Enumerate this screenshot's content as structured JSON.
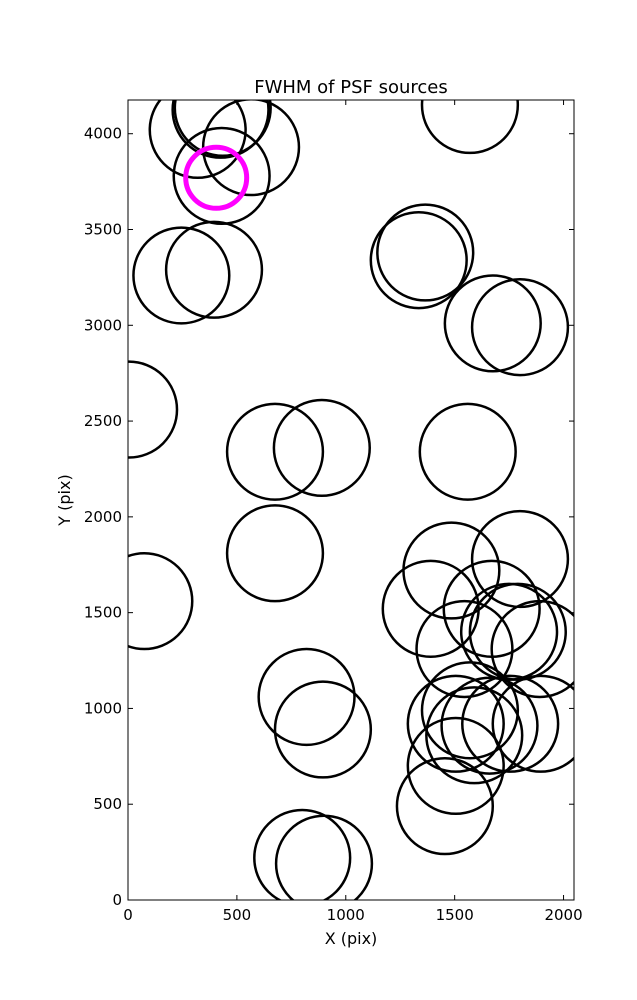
{
  "chart_data": {
    "type": "scatter",
    "title": "FWHM of PSF sources",
    "xlabel": "X (pix)",
    "ylabel": "Y (pix)",
    "xlim": [
      0,
      2048
    ],
    "ylim": [
      0,
      4176
    ],
    "xticks": [
      0,
      500,
      1000,
      1500,
      2000
    ],
    "yticks": [
      0,
      500,
      1000,
      1500,
      2000,
      2500,
      3000,
      3500,
      4000
    ],
    "grid": false,
    "marker": "circle",
    "highlight_color": "#ff00ff",
    "default_color": "#000000",
    "sources": [
      {
        "x": 320,
        "y": 4020,
        "r": 220,
        "highlight": false
      },
      {
        "x": 425,
        "y": 4125,
        "r": 220,
        "highlight": false
      },
      {
        "x": 435,
        "y": 4135,
        "r": 220,
        "highlight": false
      },
      {
        "x": 565,
        "y": 3930,
        "r": 220,
        "highlight": false
      },
      {
        "x": 430,
        "y": 3780,
        "r": 220,
        "highlight": false
      },
      {
        "x": 405,
        "y": 3770,
        "r": 140,
        "highlight": true
      },
      {
        "x": 1570,
        "y": 4150,
        "r": 220,
        "highlight": false
      },
      {
        "x": 1335,
        "y": 3340,
        "r": 220,
        "highlight": false
      },
      {
        "x": 1365,
        "y": 3380,
        "r": 220,
        "highlight": false
      },
      {
        "x": 245,
        "y": 3260,
        "r": 220,
        "highlight": false
      },
      {
        "x": 395,
        "y": 3290,
        "r": 220,
        "highlight": false
      },
      {
        "x": 1675,
        "y": 3010,
        "r": 220,
        "highlight": false
      },
      {
        "x": 1800,
        "y": 2990,
        "r": 220,
        "highlight": false
      },
      {
        "x": 5,
        "y": 2560,
        "r": 220,
        "highlight": false
      },
      {
        "x": 675,
        "y": 2340,
        "r": 220,
        "highlight": false
      },
      {
        "x": 890,
        "y": 2360,
        "r": 220,
        "highlight": false
      },
      {
        "x": 1560,
        "y": 2340,
        "r": 220,
        "highlight": false
      },
      {
        "x": 675,
        "y": 1810,
        "r": 220,
        "highlight": false
      },
      {
        "x": 75,
        "y": 1560,
        "r": 220,
        "highlight": false
      },
      {
        "x": 1485,
        "y": 1720,
        "r": 220,
        "highlight": false
      },
      {
        "x": 1800,
        "y": 1780,
        "r": 220,
        "highlight": false
      },
      {
        "x": 1390,
        "y": 1520,
        "r": 220,
        "highlight": false
      },
      {
        "x": 1670,
        "y": 1520,
        "r": 220,
        "highlight": false
      },
      {
        "x": 1750,
        "y": 1400,
        "r": 220,
        "highlight": false
      },
      {
        "x": 1790,
        "y": 1400,
        "r": 220,
        "highlight": false
      },
      {
        "x": 1890,
        "y": 1310,
        "r": 220,
        "highlight": false
      },
      {
        "x": 1545,
        "y": 1310,
        "r": 220,
        "highlight": false
      },
      {
        "x": 820,
        "y": 1060,
        "r": 220,
        "highlight": false
      },
      {
        "x": 895,
        "y": 890,
        "r": 220,
        "highlight": false
      },
      {
        "x": 1570,
        "y": 990,
        "r": 220,
        "highlight": false
      },
      {
        "x": 1505,
        "y": 920,
        "r": 220,
        "highlight": false
      },
      {
        "x": 1660,
        "y": 910,
        "r": 220,
        "highlight": false
      },
      {
        "x": 1590,
        "y": 860,
        "r": 220,
        "highlight": false
      },
      {
        "x": 1755,
        "y": 920,
        "r": 220,
        "highlight": false
      },
      {
        "x": 1895,
        "y": 920,
        "r": 220,
        "highlight": false
      },
      {
        "x": 1505,
        "y": 700,
        "r": 220,
        "highlight": false
      },
      {
        "x": 1455,
        "y": 490,
        "r": 220,
        "highlight": false
      },
      {
        "x": 800,
        "y": 220,
        "r": 220,
        "highlight": false
      },
      {
        "x": 900,
        "y": 190,
        "r": 220,
        "highlight": false
      }
    ]
  }
}
